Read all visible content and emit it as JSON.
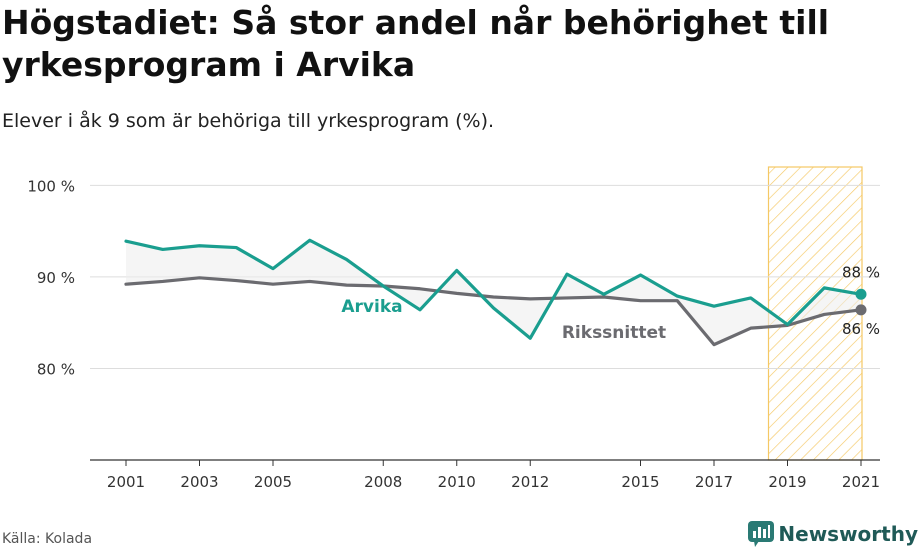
{
  "header": {
    "title": "Högstadiet: Så stor andel når behörighet till yrkesprogram i Arvika",
    "subtitle": "Elever i åk 9 som är behöriga till yrkesprogram (%)."
  },
  "footer": {
    "source": "Källa: Kolada",
    "brand": "Newsworthy"
  },
  "colors": {
    "arvika": "#1a9e8f",
    "riket": "#6b6b70",
    "highlight_fill": "#fde7b0",
    "highlight_stroke": "#f5c865",
    "band": "#ededed",
    "grid": "#dddddd"
  },
  "chart_data": {
    "type": "line",
    "x": [
      2001,
      2002,
      2003,
      2004,
      2005,
      2006,
      2007,
      2008,
      2009,
      2010,
      2011,
      2012,
      2013,
      2014,
      2015,
      2016,
      2017,
      2018,
      2019,
      2020,
      2021
    ],
    "x_tick_labels": [
      "2001",
      "2003",
      "2005",
      "2008",
      "2010",
      "2012",
      "2015",
      "2017",
      "2019",
      "2021"
    ],
    "y_tick_labels": [
      "80 %",
      "90 %",
      "100 %"
    ],
    "y_ticks": [
      80,
      90,
      100
    ],
    "ylim": [
      70,
      102
    ],
    "grid": true,
    "highlight_range": [
      2019,
      2021
    ],
    "series": [
      {
        "name": "Arvika",
        "values": [
          93.9,
          93.0,
          93.4,
          93.2,
          90.9,
          94.0,
          91.9,
          89.0,
          86.4,
          90.7,
          86.6,
          83.3,
          90.3,
          88.1,
          90.2,
          87.9,
          86.8,
          87.7,
          84.8,
          88.8,
          88.1
        ],
        "end_label": "88 %"
      },
      {
        "name": "Rikssnittet",
        "values": [
          89.2,
          89.5,
          89.9,
          89.6,
          89.2,
          89.5,
          89.1,
          89.0,
          88.7,
          88.2,
          87.8,
          87.6,
          87.7,
          87.8,
          87.4,
          87.4,
          82.6,
          84.4,
          84.7,
          85.9,
          86.4
        ],
        "end_label": "86 %"
      }
    ]
  }
}
